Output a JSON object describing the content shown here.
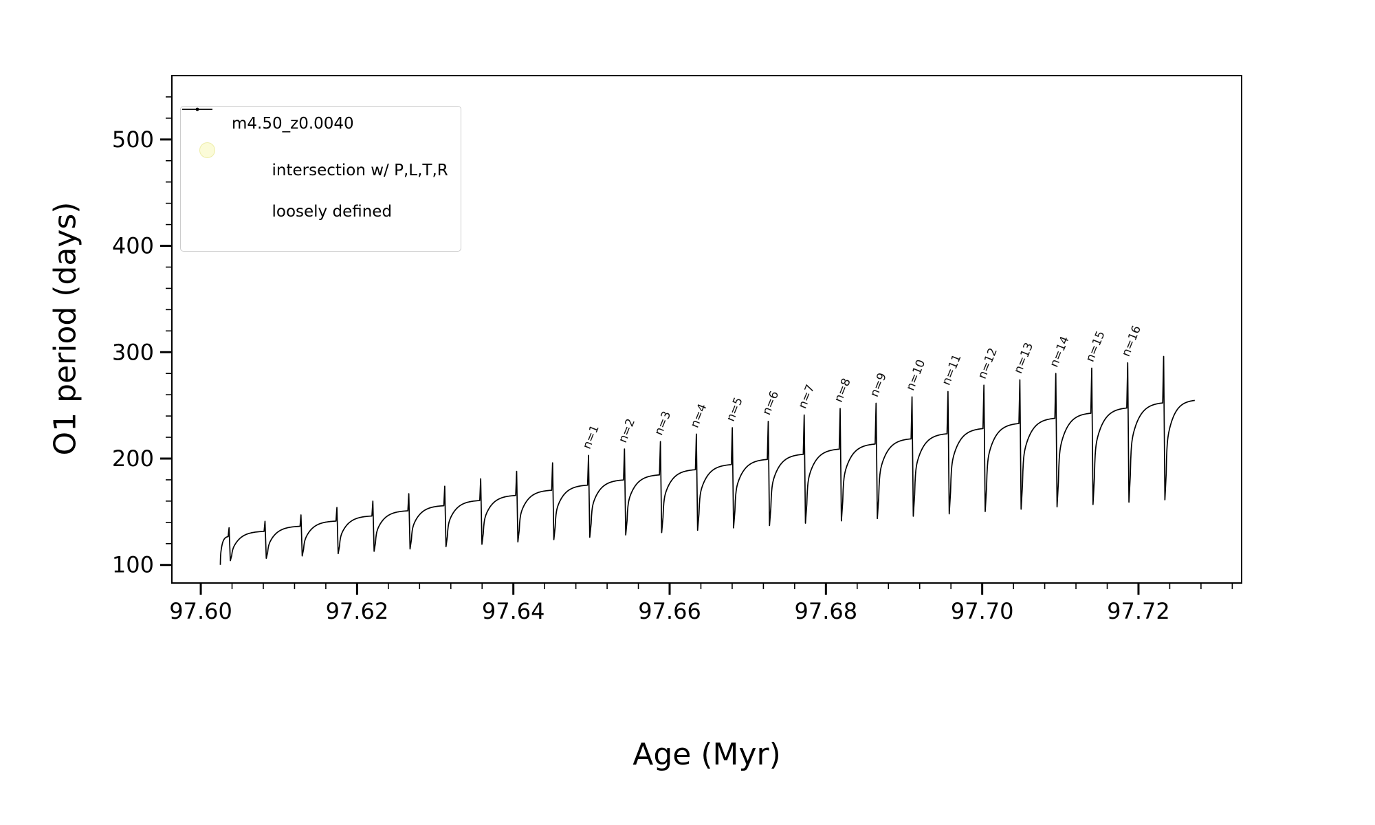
{
  "chart_data": {
    "type": "line",
    "title": "",
    "xlabel": "Age (Myr)",
    "ylabel": "O1 period (days)",
    "xlim": [
      97.5963,
      97.7332
    ],
    "ylim": [
      83,
      560
    ],
    "xticks": [
      97.6,
      97.62,
      97.64,
      97.66,
      97.68,
      97.7,
      97.72
    ],
    "xtick_labels": [
      "97.60",
      "97.62",
      "97.64",
      "97.66",
      "97.68",
      "97.70",
      "97.72"
    ],
    "yticks": [
      100,
      200,
      300,
      400,
      500
    ],
    "ytick_labels": [
      "100",
      "200",
      "300",
      "400",
      "500"
    ],
    "x_minor_step": 0.004,
    "y_minor_step": 20,
    "grid": false,
    "line_color": "#000000",
    "legend_position": "upper-left",
    "legend": [
      {
        "label": "m4.50_z0.0040",
        "marker": "line-dot",
        "color": "#000000"
      },
      {
        "label_line1": "intersection w/ P,L,T,R",
        "label_line2": "loosely defined",
        "marker": "circle",
        "color": "#fbfbd8"
      }
    ],
    "series": {
      "name": "m4.50_z0.0040",
      "start": {
        "t": 97.6025,
        "v": 100
      },
      "end": {
        "t": 97.7272,
        "v": 255.5
      },
      "scallop_depth_start": 20,
      "scallop_depth_slope": 1.0,
      "pulses": [
        {
          "t": 97.6035,
          "top": 127.0,
          "spike": 135,
          "dip": 104.0,
          "label": null
        },
        {
          "t": 97.6081,
          "top": 131.9,
          "spike": 141,
          "dip": 106.2,
          "label": null
        },
        {
          "t": 97.6127,
          "top": 136.7,
          "spike": 147,
          "dip": 108.4,
          "label": null
        },
        {
          "t": 97.6173,
          "top": 141.6,
          "spike": 154,
          "dip": 110.6,
          "label": null
        },
        {
          "t": 97.6219,
          "top": 146.4,
          "spike": 160,
          "dip": 112.8,
          "label": null
        },
        {
          "t": 97.6265,
          "top": 151.3,
          "spike": 167,
          "dip": 115.0,
          "label": null
        },
        {
          "t": 97.6311,
          "top": 156.1,
          "spike": 174,
          "dip": 117.2,
          "label": null
        },
        {
          "t": 97.6357,
          "top": 161.0,
          "spike": 181,
          "dip": 119.4,
          "label": null
        },
        {
          "t": 97.6403,
          "top": 165.8,
          "spike": 188,
          "dip": 121.6,
          "label": null
        },
        {
          "t": 97.6449,
          "top": 170.7,
          "spike": 196,
          "dip": 123.8,
          "label": null
        },
        {
          "t": 97.6495,
          "top": 175.5,
          "spike": 203,
          "dip": 126.0,
          "label": "n=1"
        },
        {
          "t": 97.6541,
          "top": 180.4,
          "spike": 209,
          "dip": 128.2,
          "label": "n=2"
        },
        {
          "t": 97.6587,
          "top": 185.2,
          "spike": 216,
          "dip": 130.4,
          "label": "n=3"
        },
        {
          "t": 97.6633,
          "top": 190.1,
          "spike": 223,
          "dip": 132.6,
          "label": "n=4"
        },
        {
          "t": 97.6679,
          "top": 194.9,
          "spike": 229,
          "dip": 134.8,
          "label": "n=5"
        },
        {
          "t": 97.6725,
          "top": 199.8,
          "spike": 235,
          "dip": 137.0,
          "label": "n=6"
        },
        {
          "t": 97.6771,
          "top": 204.6,
          "spike": 241,
          "dip": 139.2,
          "label": "n=7"
        },
        {
          "t": 97.6817,
          "top": 209.5,
          "spike": 247,
          "dip": 141.4,
          "label": "n=8"
        },
        {
          "t": 97.6863,
          "top": 214.3,
          "spike": 252,
          "dip": 143.6,
          "label": "n=9"
        },
        {
          "t": 97.6909,
          "top": 219.2,
          "spike": 258,
          "dip": 145.8,
          "label": "n=10"
        },
        {
          "t": 97.6955,
          "top": 224.0,
          "spike": 263,
          "dip": 148.0,
          "label": "n=11"
        },
        {
          "t": 97.7001,
          "top": 228.9,
          "spike": 269,
          "dip": 150.2,
          "label": "n=12"
        },
        {
          "t": 97.7047,
          "top": 233.7,
          "spike": 274,
          "dip": 152.4,
          "label": "n=13"
        },
        {
          "t": 97.7093,
          "top": 238.6,
          "spike": 280,
          "dip": 154.6,
          "label": "n=14"
        },
        {
          "t": 97.7139,
          "top": 243.4,
          "spike": 285,
          "dip": 156.8,
          "label": "n=15"
        },
        {
          "t": 97.7185,
          "top": 248.3,
          "spike": 290,
          "dip": 159.0,
          "label": "n=16"
        },
        {
          "t": 97.7231,
          "top": 253.1,
          "spike": 296,
          "dip": 161.2,
          "label": null
        }
      ]
    }
  }
}
